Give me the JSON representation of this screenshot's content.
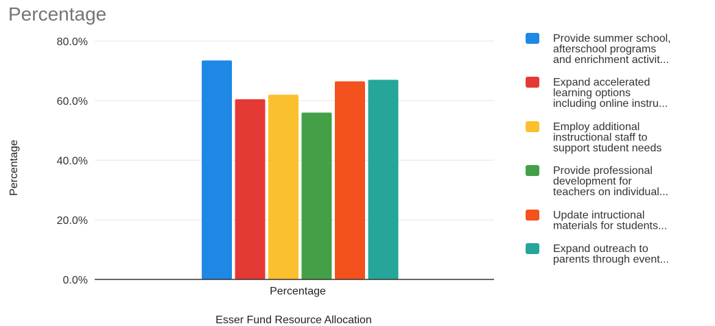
{
  "chart_data": {
    "type": "bar",
    "title": "Percentage",
    "xlabel": "Esser Fund Resource Allocation",
    "ylabel": "Percentage",
    "categories": [
      "Percentage"
    ],
    "ylim": [
      0,
      80
    ],
    "yticks": [
      "0.0%",
      "20.0%",
      "40.0%",
      "60.0%",
      "80.0%"
    ],
    "grid": true,
    "legend_position": "right",
    "series": [
      {
        "name": "Provide summer school, afterschool programs and enrichment activit...",
        "legend_lines": [
          "Provide summer school,",
          "afterschool programs",
          "and enrichment activit..."
        ],
        "values": [
          73.5
        ],
        "color": "#1f88e5"
      },
      {
        "name": "Expand accelerated learning options including online instru...",
        "legend_lines": [
          "Expand accelerated",
          "learning options",
          "including online instru..."
        ],
        "values": [
          60.5
        ],
        "color": "#e53935"
      },
      {
        "name": "Employ additional instructional staff to support student needs",
        "legend_lines": [
          "Employ additional",
          "instructional staff to",
          "support student needs"
        ],
        "values": [
          62
        ],
        "color": "#fbc02d"
      },
      {
        "name": "Provide professional development for teachers on individual...",
        "legend_lines": [
          "Provide professional",
          "development for",
          "teachers on individual..."
        ],
        "values": [
          56
        ],
        "color": "#43a047"
      },
      {
        "name": "Update intructional materials for students...",
        "legend_lines": [
          "Update intructional",
          "materials for students..."
        ],
        "values": [
          66.5
        ],
        "color": "#f4511e"
      },
      {
        "name": "Expand outreach to parents through event...",
        "legend_lines": [
          "Expand outreach to",
          "parents through event..."
        ],
        "values": [
          67
        ],
        "color": "#26a69a"
      }
    ]
  }
}
